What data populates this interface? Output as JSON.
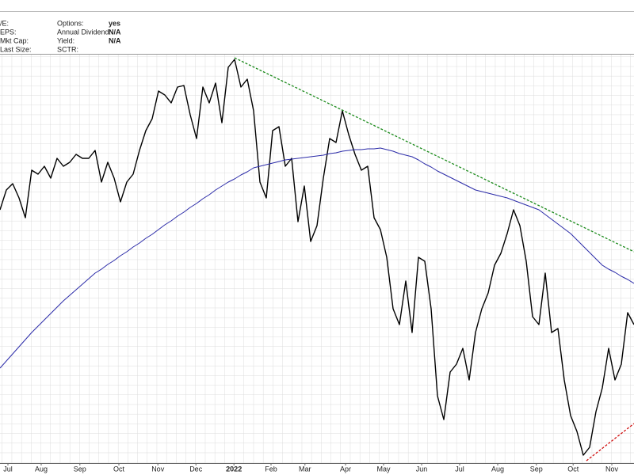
{
  "header": {
    "rows": [
      [
        "/E:",
        "Options:",
        "yes"
      ],
      [
        "EPS:",
        "Annual Dividend:",
        "N/A"
      ],
      [
        "Mkt Cap:",
        "Yield:",
        "N/A"
      ],
      [
        "Last Size:",
        "SCTR:",
        null
      ]
    ]
  },
  "chart_data": {
    "type": "line",
    "x": [
      0,
      1,
      2,
      3,
      4,
      5,
      6,
      7,
      8,
      9,
      10,
      11,
      12,
      13,
      14,
      15,
      16,
      17,
      18,
      19,
      20,
      21,
      22,
      23,
      24,
      25,
      26,
      27,
      28,
      29,
      30,
      31,
      32,
      33,
      34,
      35,
      36,
      37,
      38,
      39,
      40,
      41,
      42,
      43,
      44,
      45,
      46,
      47,
      48,
      49,
      50,
      51,
      52,
      53,
      54,
      55,
      56,
      57,
      58,
      59,
      60,
      61,
      62,
      63,
      64,
      65,
      66,
      67,
      68,
      69,
      70,
      71,
      72,
      73,
      74,
      75,
      76,
      77,
      78,
      79,
      80,
      81,
      82,
      83,
      84,
      85,
      86,
      87,
      88,
      89,
      90,
      91,
      92,
      93,
      94,
      95,
      96,
      97,
      98,
      99,
      100
    ],
    "xlim": [
      0,
      100
    ],
    "xticks": [
      {
        "value": 1.25,
        "label": "Jul"
      },
      {
        "value": 6.5,
        "label": "Aug"
      },
      {
        "value": 12.6,
        "label": "Sep"
      },
      {
        "value": 18.75,
        "label": "Oct"
      },
      {
        "value": 24.9,
        "label": "Nov"
      },
      {
        "value": 30.9,
        "label": "Dec"
      },
      {
        "value": 36.9,
        "label": "2022"
      },
      {
        "value": 42.75,
        "label": "Feb"
      },
      {
        "value": 48.1,
        "label": "Mar"
      },
      {
        "value": 54.5,
        "label": "Apr"
      },
      {
        "value": 60.5,
        "label": "May"
      },
      {
        "value": 66.5,
        "label": "Jun"
      },
      {
        "value": 72.5,
        "label": "Jul"
      },
      {
        "value": 78.5,
        "label": "Aug"
      },
      {
        "value": 84.6,
        "label": "Sep"
      },
      {
        "value": 90.4,
        "label": "Oct"
      },
      {
        "value": 96.5,
        "label": "Nov"
      }
    ],
    "ylim": [
      0,
      517
    ],
    "grid": true,
    "series": [
      {
        "color": "#000000",
        "values": [
          320,
          345,
          353,
          335,
          310,
          370,
          365,
          375,
          360,
          385,
          375,
          380,
          390,
          385,
          385,
          395,
          355,
          380,
          360,
          330,
          355,
          365,
          395,
          420,
          435,
          470,
          465,
          455,
          475,
          477,
          440,
          410,
          475,
          455,
          480,
          430,
          500,
          510,
          475,
          485,
          445,
          355,
          335,
          420,
          425,
          375,
          385,
          305,
          350,
          280,
          300,
          360,
          410,
          405,
          445,
          415,
          390,
          370,
          375,
          310,
          295,
          260,
          195,
          175,
          230,
          165,
          260,
          255,
          195,
          85,
          55,
          115,
          125,
          145,
          105,
          165,
          195,
          215,
          250,
          265,
          290,
          320,
          300,
          255,
          185,
          175,
          240,
          165,
          170,
          105,
          60,
          40,
          10,
          20,
          65,
          95,
          145,
          105,
          125,
          190,
          175
        ]
      },
      {
        "color": "#2a2aa8",
        "values": [
          120,
          129,
          138,
          147,
          156,
          165,
          173,
          181,
          189,
          197,
          205,
          212,
          219,
          226,
          233,
          240,
          245,
          251,
          256,
          262,
          267,
          273,
          278,
          284,
          289,
          295,
          301,
          306,
          312,
          317,
          323,
          328,
          334,
          339,
          345,
          350,
          355,
          359,
          364,
          368,
          373,
          375,
          377,
          379,
          381,
          383,
          384,
          385,
          386,
          387,
          388,
          389,
          391,
          392,
          394,
          395,
          396,
          396,
          397,
          397,
          398,
          396,
          394,
          391,
          389,
          387,
          383,
          378,
          374,
          369,
          365,
          361,
          357,
          353,
          349,
          345,
          343,
          341,
          339,
          337,
          335,
          332,
          329,
          326,
          323,
          320,
          314,
          308,
          302,
          296,
          290,
          282,
          274,
          266,
          258,
          250,
          245,
          241,
          236,
          232,
          227
        ]
      }
    ],
    "trendlines": [
      {
        "color": "#1a8a1a",
        "x": [
          37,
          100
        ],
        "values": [
          512,
          267
        ]
      },
      {
        "color": "#d01010",
        "x": [
          92.5,
          100
        ],
        "values": [
          3,
          50
        ]
      }
    ]
  }
}
